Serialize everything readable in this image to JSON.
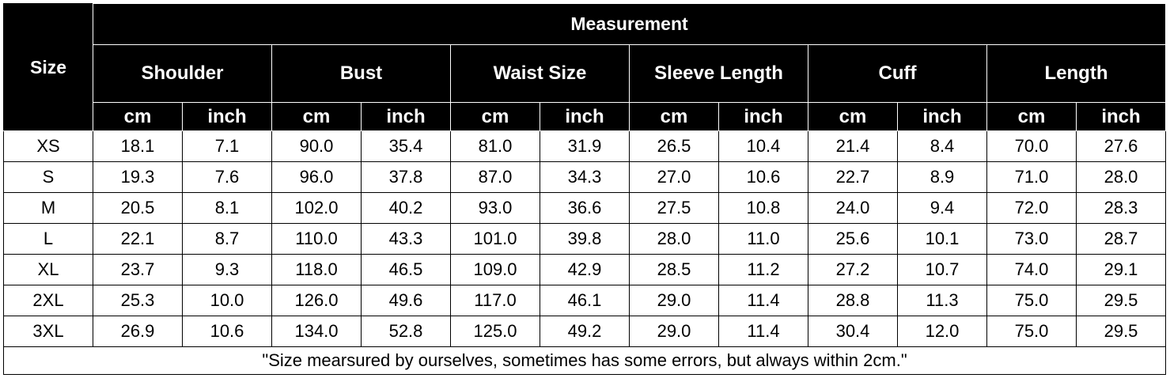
{
  "header": {
    "size_label": "Size",
    "group_label": "Measurement",
    "measures": [
      "Shoulder",
      "Bust",
      "Waist Size",
      "Sleeve Length",
      "Cuff",
      "Length"
    ],
    "units": [
      "cm",
      "inch"
    ]
  },
  "rows": [
    {
      "size": "XS",
      "values": [
        "18.1",
        "7.1",
        "90.0",
        "35.4",
        "81.0",
        "31.9",
        "26.5",
        "10.4",
        "21.4",
        "8.4",
        "70.0",
        "27.6"
      ]
    },
    {
      "size": "S",
      "values": [
        "19.3",
        "7.6",
        "96.0",
        "37.8",
        "87.0",
        "34.3",
        "27.0",
        "10.6",
        "22.7",
        "8.9",
        "71.0",
        "28.0"
      ]
    },
    {
      "size": "M",
      "values": [
        "20.5",
        "8.1",
        "102.0",
        "40.2",
        "93.0",
        "36.6",
        "27.5",
        "10.8",
        "24.0",
        "9.4",
        "72.0",
        "28.3"
      ]
    },
    {
      "size": "L",
      "values": [
        "22.1",
        "8.7",
        "110.0",
        "43.3",
        "101.0",
        "39.8",
        "28.0",
        "11.0",
        "25.6",
        "10.1",
        "73.0",
        "28.7"
      ]
    },
    {
      "size": "XL",
      "values": [
        "23.7",
        "9.3",
        "118.0",
        "46.5",
        "109.0",
        "42.9",
        "28.5",
        "11.2",
        "27.2",
        "10.7",
        "74.0",
        "29.1"
      ]
    },
    {
      "size": "2XL",
      "values": [
        "25.3",
        "10.0",
        "126.0",
        "49.6",
        "117.0",
        "46.1",
        "29.0",
        "11.4",
        "28.8",
        "11.3",
        "75.0",
        "29.5"
      ]
    },
    {
      "size": "3XL",
      "values": [
        "26.9",
        "10.6",
        "134.0",
        "52.8",
        "125.0",
        "49.2",
        "29.0",
        "11.4",
        "30.4",
        "12.0",
        "75.0",
        "29.5"
      ]
    }
  ],
  "footer_note": "\"Size mearsured by ourselves, sometimes has some errors, but always within 2cm.\"",
  "colors": {
    "header_bg": "#000000",
    "header_text": "#ffffff",
    "grid": "#000000"
  }
}
